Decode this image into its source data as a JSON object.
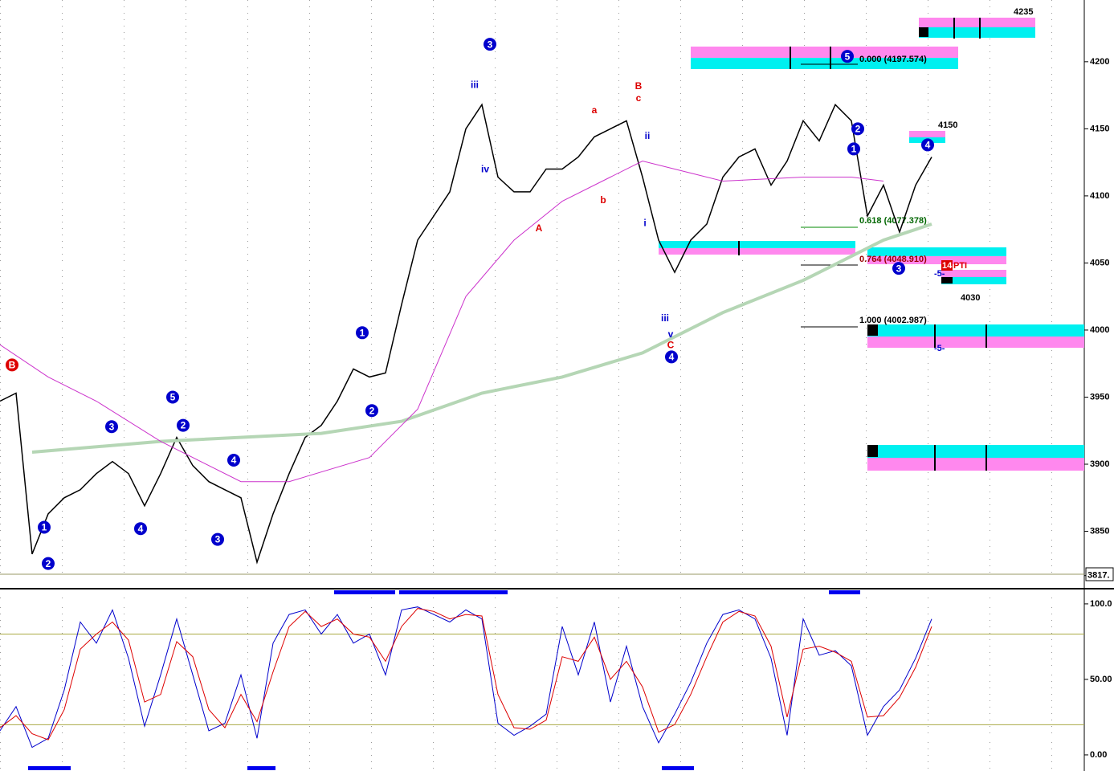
{
  "chart_data": [
    {
      "type": "line",
      "ylim": [
        3818,
        4246
      ],
      "xlim": [
        0,
        67.5
      ],
      "yticks": [
        3850,
        3900,
        3950,
        4000,
        4050,
        4100,
        4150,
        4200
      ],
      "last_price": {
        "value": 3817,
        "label": "3817."
      },
      "levels": [
        4235,
        4150,
        4030
      ],
      "fib_labels": [
        "0.000 (4197.574)",
        "0.618 (4077.378)",
        "0.764 (4048.910)",
        "1.000 (4002.987)"
      ],
      "other_labels": [
        "14",
        "PTI",
        "-5-",
        "-5-"
      ],
      "series": [
        {
          "name": "Price",
          "color": "#000000",
          "x": [
            0,
            1,
            2,
            3,
            4,
            5,
            6,
            7,
            8,
            9,
            10,
            11,
            12,
            13,
            14,
            15,
            16,
            17,
            18,
            19,
            20,
            21,
            22,
            23,
            24,
            25,
            26,
            27,
            28,
            29,
            30,
            31,
            32,
            33,
            34,
            35,
            36,
            37,
            38,
            39,
            40,
            41,
            42,
            43,
            44,
            45,
            46,
            47,
            48,
            49,
            50,
            51,
            52,
            53,
            54,
            55,
            56,
            57,
            58
          ],
          "values": [
            3947,
            3953,
            3833,
            3863,
            3875,
            3881,
            3893,
            3902,
            3893,
            3869,
            3893,
            3920,
            3899,
            3887,
            3881,
            3875,
            3827,
            3863,
            3893,
            3920,
            3929,
            3947,
            3971,
            3965,
            3968,
            4019,
            4067,
            4085,
            4103,
            4150,
            4168,
            4114,
            4103,
            4103,
            4120,
            4120,
            4129,
            4144,
            4150,
            4156,
            4114,
            4067,
            4043,
            4067,
            4079,
            4114,
            4129,
            4135,
            4108,
            4126,
            4156,
            4141,
            4168,
            4156,
            4085,
            4108,
            4073,
            4108,
            4129
          ]
        },
        {
          "name": "MA long",
          "color": "#b5d6b5",
          "x": [
            2,
            10,
            20,
            25,
            30,
            35,
            40,
            45,
            50,
            55,
            58
          ],
          "values": [
            3909,
            3917,
            3923,
            3932,
            3953,
            3965,
            3983,
            4013,
            4037,
            4067,
            4079
          ]
        },
        {
          "name": "MA mid",
          "color": "#cc33cc",
          "x": [
            0,
            3,
            6,
            10,
            15,
            18,
            23,
            26,
            29,
            32,
            35,
            38,
            40,
            43,
            45,
            50,
            53,
            55
          ],
          "values": [
            3989,
            3965,
            3947,
            3917,
            3887,
            3887,
            3905,
            3941,
            4025,
            4067,
            4096,
            4114,
            4126,
            4117,
            4111,
            4114,
            4114,
            4111
          ]
        }
      ],
      "annotations": [
        {
          "text": "B",
          "x": 0.75,
          "y": 3974,
          "color": "#dd0000",
          "circled": true
        },
        {
          "text": "1",
          "x": 2.75,
          "y": 3853,
          "color": "#0000cc",
          "circled": true
        },
        {
          "text": "2",
          "x": 3,
          "y": 3826,
          "color": "#0000cc",
          "circled": true
        },
        {
          "text": "3",
          "x": 6.95,
          "y": 3928,
          "color": "#0000cc",
          "circled": true
        },
        {
          "text": "4",
          "x": 8.75,
          "y": 3852,
          "color": "#0000cc",
          "circled": true
        },
        {
          "text": "5",
          "x": 10.75,
          "y": 3950,
          "color": "#0000cc",
          "circled": true
        },
        {
          "text": "2",
          "x": 11.4,
          "y": 3929,
          "color": "#0000cc",
          "circled": true
        },
        {
          "text": "3",
          "x": 13.55,
          "y": 3844,
          "color": "#0000cc",
          "circled": true
        },
        {
          "text": "4",
          "x": 14.55,
          "y": 3903,
          "color": "#0000cc",
          "circled": true
        },
        {
          "text": "1",
          "x": 22.55,
          "y": 3998,
          "color": "#0000cc",
          "circled": true
        },
        {
          "text": "2",
          "x": 23.15,
          "y": 3940,
          "color": "#0000cc",
          "circled": true
        },
        {
          "text": "3",
          "x": 30.5,
          "y": 4213,
          "color": "#0000cc",
          "circled": true
        },
        {
          "text": "4",
          "x": 41.8,
          "y": 3980,
          "color": "#0000cc",
          "circled": true
        },
        {
          "text": "5",
          "x": 52.75,
          "y": 4204,
          "color": "#0000cc",
          "circled": true
        },
        {
          "text": "1",
          "x": 53.15,
          "y": 4135,
          "color": "#0000cc",
          "circled": true
        },
        {
          "text": "2",
          "x": 53.4,
          "y": 4150,
          "color": "#0000cc",
          "circled": true
        },
        {
          "text": "3",
          "x": 55.95,
          "y": 4046,
          "color": "#0000cc",
          "circled": true
        },
        {
          "text": "4",
          "x": 57.75,
          "y": 4138,
          "color": "#0000cc",
          "circled": true
        },
        {
          "text": "A",
          "x": 33.55,
          "y": 4076,
          "color": "#dd0000",
          "circled": false
        },
        {
          "text": "B",
          "x": 39.75,
          "y": 4182,
          "color": "#dd0000",
          "circled": false
        },
        {
          "text": "C",
          "x": 41.75,
          "y": 3989,
          "color": "#dd0000",
          "circled": false
        },
        {
          "text": "a",
          "x": 37,
          "y": 4164,
          "color": "#dd0000",
          "circled": false
        },
        {
          "text": "b",
          "x": 37.55,
          "y": 4097,
          "color": "#dd0000",
          "circled": false
        },
        {
          "text": "c",
          "x": 39.75,
          "y": 4173,
          "color": "#dd0000",
          "circled": false
        },
        {
          "text": "iii",
          "x": 29.55,
          "y": 4183,
          "color": "#0000cc",
          "circled": false
        },
        {
          "text": "iv",
          "x": 30.2,
          "y": 4120,
          "color": "#0000cc",
          "circled": false
        },
        {
          "text": "i",
          "x": 40.15,
          "y": 4080,
          "color": "#0000cc",
          "circled": false
        },
        {
          "text": "ii",
          "x": 40.3,
          "y": 4145,
          "color": "#0000cc",
          "circled": false
        },
        {
          "text": "iii",
          "x": 41.4,
          "y": 4009,
          "color": "#0000cc",
          "circled": false
        },
        {
          "text": "v",
          "x": 41.75,
          "y": 3997,
          "color": "#0000cc",
          "circled": false
        }
      ]
    },
    {
      "type": "line",
      "ylim": [
        -9.6,
        107.4
      ],
      "xlim": [
        0,
        67.5
      ],
      "yticks": [
        {
          "value": 0,
          "label": "0.00"
        },
        {
          "value": 50,
          "label": "50.00"
        },
        {
          "value": 100,
          "label": "100.0"
        }
      ],
      "guides": [
        20,
        80
      ],
      "series": [
        {
          "name": "%K",
          "color": "#0000cc",
          "x": [
            0,
            1,
            2,
            3,
            4,
            5,
            6,
            7,
            8,
            9,
            10,
            11,
            12,
            13,
            14,
            15,
            16,
            17,
            18,
            19,
            20,
            21,
            22,
            23,
            24,
            25,
            26,
            27,
            28,
            29,
            30,
            31,
            32,
            33,
            34,
            35,
            36,
            37,
            38,
            39,
            40,
            41,
            42,
            43,
            44,
            45,
            46,
            47,
            48,
            49,
            50,
            51,
            52,
            53,
            54,
            55,
            56,
            57,
            58
          ],
          "values": [
            16,
            32,
            5,
            11,
            43,
            88,
            74,
            96,
            64,
            19,
            53,
            90,
            53,
            16,
            21,
            53,
            11,
            74,
            93,
            96,
            80,
            93,
            74,
            80,
            53,
            96,
            98,
            93,
            88,
            96,
            90,
            21,
            13,
            19,
            27,
            85,
            53,
            88,
            35,
            72,
            32,
            8,
            27,
            48,
            74,
            93,
            96,
            90,
            64,
            13,
            90,
            66,
            69,
            59,
            13,
            32,
            43,
            64,
            90
          ]
        },
        {
          "name": "%D",
          "color": "#dd0000",
          "x": [
            0,
            1,
            2,
            3,
            4,
            5,
            6,
            7,
            8,
            9,
            10,
            11,
            12,
            13,
            14,
            15,
            16,
            17,
            18,
            19,
            20,
            21,
            22,
            23,
            24,
            25,
            26,
            27,
            28,
            29,
            30,
            31,
            32,
            33,
            34,
            35,
            36,
            37,
            38,
            39,
            40,
            41,
            42,
            43,
            44,
            45,
            46,
            47,
            48,
            49,
            50,
            51,
            52,
            53,
            54,
            55,
            56,
            57,
            58
          ],
          "values": [
            18,
            26,
            14,
            10,
            30,
            70,
            80,
            88,
            76,
            35,
            40,
            75,
            65,
            30,
            18,
            40,
            22,
            55,
            85,
            95,
            85,
            90,
            80,
            78,
            62,
            85,
            97,
            95,
            90,
            93,
            92,
            40,
            18,
            17,
            23,
            65,
            62,
            78,
            50,
            62,
            45,
            15,
            20,
            40,
            65,
            88,
            95,
            92,
            72,
            25,
            70,
            72,
            68,
            62,
            25,
            26,
            38,
            58,
            85
          ]
        }
      ]
    }
  ]
}
